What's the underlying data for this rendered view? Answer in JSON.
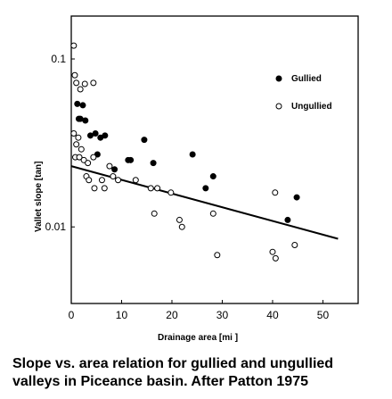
{
  "caption": {
    "line1": "Slope vs. area relation for gullied and ungullied",
    "line2": "valleys in Piceance basin. After Patton  1975"
  },
  "chart_data": {
    "type": "scatter",
    "title": "",
    "xlabel": "Drainage area [mi  ]",
    "ylabel": "Vallet slope [tan]",
    "xlim": [
      0,
      57
    ],
    "ylim": [
      0.0035,
      0.18
    ],
    "y_scale": "log",
    "x_ticks": [
      0,
      10,
      20,
      30,
      40,
      50
    ],
    "x_tick_labels": [
      "0",
      "10",
      "20",
      "30",
      "40",
      "50"
    ],
    "y_ticks": [
      0.1,
      0.01
    ],
    "y_tick_labels": [
      "0.1",
      "0.01"
    ],
    "grid": false,
    "legend_position": "top-right",
    "colors": {
      "gullied": "#000000",
      "ungullied": "#ffffff",
      "stroke": "#000000"
    },
    "series": [
      {
        "name": "Gullied",
        "marker": "filled-circle",
        "points": [
          [
            1.2,
            0.054
          ],
          [
            1.5,
            0.044
          ],
          [
            2.3,
            0.053
          ],
          [
            2.8,
            0.043
          ],
          [
            1.8,
            0.044
          ],
          [
            3.8,
            0.035
          ],
          [
            4.8,
            0.036
          ],
          [
            5.8,
            0.034
          ],
          [
            5.2,
            0.027
          ],
          [
            6.7,
            0.035
          ],
          [
            8.6,
            0.022
          ],
          [
            11.3,
            0.025
          ],
          [
            11.8,
            0.025
          ],
          [
            14.5,
            0.033
          ],
          [
            16.3,
            0.024
          ],
          [
            24.1,
            0.027
          ],
          [
            26.7,
            0.017
          ],
          [
            28.2,
            0.02
          ],
          [
            43.0,
            0.011
          ],
          [
            44.8,
            0.015
          ]
        ]
      },
      {
        "name": "Ungullied",
        "marker": "open-circle",
        "points": [
          [
            0.5,
            0.12
          ],
          [
            0.7,
            0.08
          ],
          [
            1.0,
            0.072
          ],
          [
            1.8,
            0.066
          ],
          [
            2.7,
            0.071
          ],
          [
            4.4,
            0.072
          ],
          [
            0.5,
            0.036
          ],
          [
            1.0,
            0.031
          ],
          [
            1.4,
            0.034
          ],
          [
            0.8,
            0.026
          ],
          [
            1.6,
            0.026
          ],
          [
            2.0,
            0.029
          ],
          [
            2.5,
            0.025
          ],
          [
            3.3,
            0.024
          ],
          [
            4.4,
            0.026
          ],
          [
            3.0,
            0.02
          ],
          [
            3.5,
            0.019
          ],
          [
            4.6,
            0.017
          ],
          [
            6.1,
            0.019
          ],
          [
            6.6,
            0.017
          ],
          [
            7.6,
            0.023
          ],
          [
            8.3,
            0.02
          ],
          [
            9.3,
            0.019
          ],
          [
            12.8,
            0.019
          ],
          [
            15.8,
            0.017
          ],
          [
            17.1,
            0.017
          ],
          [
            19.8,
            0.016
          ],
          [
            16.5,
            0.012
          ],
          [
            22.0,
            0.01
          ],
          [
            21.5,
            0.011
          ],
          [
            28.2,
            0.012
          ],
          [
            29.0,
            0.0068
          ],
          [
            40.0,
            0.0071
          ],
          [
            40.6,
            0.0065
          ],
          [
            40.5,
            0.016
          ],
          [
            44.4,
            0.0078
          ]
        ]
      }
    ],
    "trend_line": {
      "x": [
        0,
        53
      ],
      "y": [
        0.023,
        0.0085
      ]
    }
  }
}
